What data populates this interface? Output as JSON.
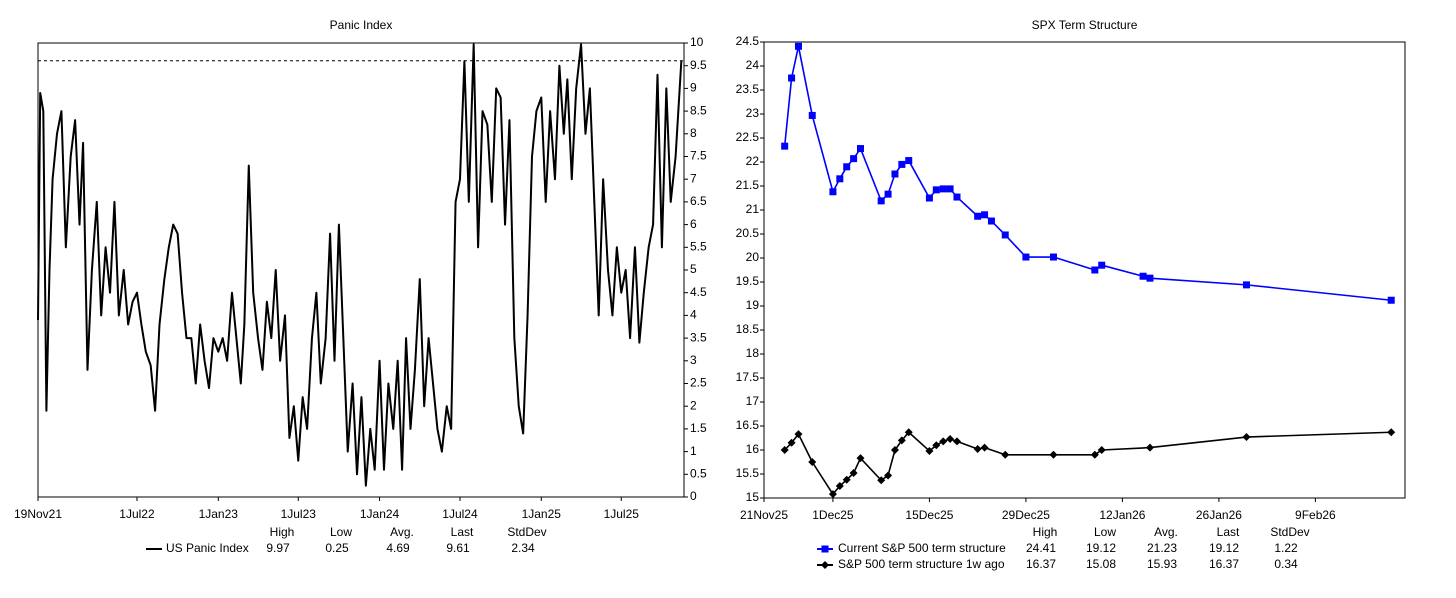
{
  "chart_data": [
    {
      "type": "line",
      "title": "Panic Index",
      "yaxis_side": "right",
      "last_line": true,
      "xlim": [
        "2021-11-19",
        "2025-11-20"
      ],
      "xticks": [
        {
          "value": "2021-11-19",
          "label": "19Nov21"
        },
        {
          "value": "2022-07-01",
          "label": "1Jul22"
        },
        {
          "value": "2023-01-01",
          "label": "1Jan23"
        },
        {
          "value": "2023-07-01",
          "label": "1Jul23"
        },
        {
          "value": "2024-01-01",
          "label": "1Jan24"
        },
        {
          "value": "2024-07-01",
          "label": "1Jul24"
        },
        {
          "value": "2025-01-01",
          "label": "1Jan25"
        },
        {
          "value": "2025-07-01",
          "label": "1Jul25"
        }
      ],
      "ylim": [
        0,
        10
      ],
      "yticks": [
        0,
        0.5,
        1,
        1.5,
        2,
        2.5,
        3,
        3.5,
        4,
        4.5,
        5,
        5.5,
        6,
        6.5,
        7,
        7.5,
        8,
        8.5,
        9,
        9.5,
        10
      ],
      "stats_columns": [
        "High",
        "Low",
        "Avg.",
        "Last",
        "StdDev"
      ],
      "series": [
        {
          "name": "US Panic Index",
          "color": "#000000",
          "marker": null,
          "stats": [
            9.97,
            0.25,
            4.69,
            9.61,
            2.34
          ],
          "x": [
            "2021-11-19",
            "2021-11-24",
            "2021-12-01",
            "2021-12-08",
            "2021-12-15",
            "2021-12-22",
            "2022-01-01",
            "2022-01-11",
            "2022-01-21",
            "2022-02-01",
            "2022-02-11",
            "2022-02-21",
            "2022-03-01",
            "2022-03-11",
            "2022-03-21",
            "2022-04-01",
            "2022-04-11",
            "2022-04-21",
            "2022-05-01",
            "2022-05-11",
            "2022-05-21",
            "2022-06-01",
            "2022-06-11",
            "2022-06-21",
            "2022-07-01",
            "2022-07-11",
            "2022-07-21",
            "2022-08-01",
            "2022-08-11",
            "2022-08-21",
            "2022-09-01",
            "2022-09-11",
            "2022-09-21",
            "2022-10-01",
            "2022-10-11",
            "2022-10-21",
            "2022-11-01",
            "2022-11-11",
            "2022-11-21",
            "2022-12-01",
            "2022-12-11",
            "2022-12-21",
            "2023-01-01",
            "2023-01-11",
            "2023-01-21",
            "2023-02-01",
            "2023-02-11",
            "2023-02-21",
            "2023-03-01",
            "2023-03-11",
            "2023-03-21",
            "2023-04-01",
            "2023-04-11",
            "2023-04-21",
            "2023-05-01",
            "2023-05-11",
            "2023-05-21",
            "2023-06-01",
            "2023-06-11",
            "2023-06-21",
            "2023-07-01",
            "2023-07-11",
            "2023-07-21",
            "2023-08-01",
            "2023-08-11",
            "2023-08-21",
            "2023-09-01",
            "2023-09-11",
            "2023-09-21",
            "2023-10-01",
            "2023-10-11",
            "2023-10-21",
            "2023-11-01",
            "2023-11-11",
            "2023-11-21",
            "2023-12-01",
            "2023-12-11",
            "2023-12-21",
            "2024-01-01",
            "2024-01-11",
            "2024-01-21",
            "2024-02-01",
            "2024-02-11",
            "2024-02-21",
            "2024-03-01",
            "2024-03-11",
            "2024-03-21",
            "2024-04-01",
            "2024-04-11",
            "2024-04-21",
            "2024-05-01",
            "2024-05-11",
            "2024-05-21",
            "2024-06-01",
            "2024-06-11",
            "2024-06-21",
            "2024-07-01",
            "2024-07-11",
            "2024-07-21",
            "2024-08-01",
            "2024-08-11",
            "2024-08-21",
            "2024-09-01",
            "2024-09-11",
            "2024-09-21",
            "2024-10-01",
            "2024-10-11",
            "2024-10-21",
            "2024-11-01",
            "2024-11-11",
            "2024-11-21",
            "2024-12-01",
            "2024-12-11",
            "2024-12-21",
            "2025-01-01",
            "2025-01-11",
            "2025-01-21",
            "2025-02-01",
            "2025-02-11",
            "2025-02-21",
            "2025-03-01",
            "2025-03-11",
            "2025-03-21",
            "2025-04-01",
            "2025-04-11",
            "2025-04-21",
            "2025-05-01",
            "2025-05-11",
            "2025-05-21",
            "2025-06-01",
            "2025-06-11",
            "2025-06-21",
            "2025-07-01",
            "2025-07-11",
            "2025-07-21",
            "2025-08-01",
            "2025-08-11",
            "2025-08-21",
            "2025-09-01",
            "2025-09-11",
            "2025-09-21",
            "2025-10-01",
            "2025-10-11",
            "2025-10-21",
            "2025-11-01",
            "2025-11-14"
          ],
          "values": [
            3.9,
            8.9,
            8.5,
            1.9,
            5.0,
            7.0,
            8.0,
            8.5,
            5.5,
            7.5,
            8.3,
            6.0,
            7.8,
            2.8,
            5.0,
            6.5,
            4.0,
            5.5,
            4.5,
            6.5,
            4.0,
            5.0,
            3.8,
            4.3,
            4.5,
            3.8,
            3.2,
            2.9,
            1.9,
            3.8,
            4.8,
            5.5,
            6.0,
            5.8,
            4.5,
            3.5,
            3.5,
            2.5,
            3.8,
            3.0,
            2.4,
            3.5,
            3.2,
            3.5,
            3.0,
            4.5,
            3.5,
            2.5,
            3.8,
            7.3,
            4.5,
            3.5,
            2.8,
            4.3,
            3.5,
            5.0,
            3.0,
            4.0,
            1.3,
            2.0,
            0.8,
            2.2,
            1.5,
            3.5,
            4.5,
            2.5,
            3.5,
            5.8,
            3.0,
            6.0,
            3.5,
            1.0,
            2.5,
            0.5,
            2.2,
            0.25,
            1.5,
            0.6,
            3.0,
            0.6,
            2.5,
            1.5,
            3.0,
            0.6,
            3.5,
            1.5,
            2.8,
            4.8,
            2.0,
            3.5,
            2.5,
            1.5,
            1.0,
            2.0,
            1.5,
            6.5,
            7.0,
            9.6,
            6.5,
            9.97,
            5.5,
            8.5,
            8.2,
            6.5,
            9.0,
            8.8,
            6.0,
            8.3,
            3.5,
            2.0,
            1.4,
            4.0,
            7.5,
            8.5,
            8.8,
            6.5,
            8.5,
            7.0,
            9.5,
            8.0,
            9.2,
            7.0,
            9.0,
            9.97,
            8.0,
            9.0,
            6.5,
            4.0,
            7.0,
            5.0,
            4.0,
            5.5,
            4.5,
            5.0,
            3.5,
            5.5,
            3.4,
            4.5,
            5.5,
            6.0,
            9.3,
            5.5,
            9.0,
            6.5,
            7.5,
            9.61
          ]
        }
      ]
    },
    {
      "type": "line",
      "title": "SPX Term Structure",
      "yaxis_side": "left",
      "last_line": false,
      "xlim": [
        "2025-11-21",
        "2026-02-22"
      ],
      "xticks": [
        {
          "value": "2025-11-21",
          "label": "21Nov25"
        },
        {
          "value": "2025-12-01",
          "label": "1Dec25"
        },
        {
          "value": "2025-12-15",
          "label": "15Dec25"
        },
        {
          "value": "2025-12-29",
          "label": "29Dec25"
        },
        {
          "value": "2026-01-12",
          "label": "12Jan26"
        },
        {
          "value": "2026-01-26",
          "label": "26Jan26"
        },
        {
          "value": "2026-02-09",
          "label": "9Feb26"
        }
      ],
      "ylim": [
        15,
        24.5
      ],
      "yticks": [
        15,
        15.5,
        16,
        16.5,
        17,
        17.5,
        18,
        18.5,
        19,
        19.5,
        20,
        20.5,
        21,
        21.5,
        22,
        22.5,
        23,
        23.5,
        24,
        24.5
      ],
      "stats_columns": [
        "High",
        "Low",
        "Avg.",
        "Last",
        "StdDev"
      ],
      "series": [
        {
          "name": "Current S&P 500 term structure",
          "color": "#0000ff",
          "marker": "square",
          "stats": [
            24.41,
            19.12,
            21.23,
            19.12,
            1.22
          ],
          "x": [
            "2025-11-24",
            "2025-11-25",
            "2025-11-26",
            "2025-11-28",
            "2025-12-01",
            "2025-12-02",
            "2025-12-03",
            "2025-12-04",
            "2025-12-05",
            "2025-12-08",
            "2025-12-09",
            "2025-12-10",
            "2025-12-11",
            "2025-12-12",
            "2025-12-15",
            "2025-12-16",
            "2025-12-17",
            "2025-12-18",
            "2025-12-19",
            "2025-12-22",
            "2025-12-23",
            "2025-12-24",
            "2025-12-26",
            "2025-12-29",
            "2026-01-02",
            "2026-01-08",
            "2026-01-09",
            "2026-01-15",
            "2026-01-16",
            "2026-01-30",
            "2026-02-20"
          ],
          "values": [
            22.33,
            23.75,
            24.41,
            22.97,
            21.38,
            21.65,
            21.9,
            22.07,
            22.28,
            21.19,
            21.33,
            21.75,
            21.95,
            22.03,
            21.25,
            21.42,
            21.44,
            21.44,
            21.27,
            20.87,
            20.9,
            20.77,
            20.48,
            20.02,
            20.02,
            19.75,
            19.85,
            19.62,
            19.58,
            19.44,
            19.12
          ]
        },
        {
          "name": "S&P 500 term structure 1w ago",
          "color": "#000000",
          "marker": "diamond",
          "stats": [
            16.37,
            15.08,
            15.93,
            16.37,
            0.34
          ],
          "x": [
            "2025-11-24",
            "2025-11-25",
            "2025-11-26",
            "2025-11-28",
            "2025-12-01",
            "2025-12-02",
            "2025-12-03",
            "2025-12-04",
            "2025-12-05",
            "2025-12-08",
            "2025-12-09",
            "2025-12-10",
            "2025-12-11",
            "2025-12-12",
            "2025-12-15",
            "2025-12-16",
            "2025-12-17",
            "2025-12-18",
            "2025-12-19",
            "2025-12-22",
            "2025-12-23",
            "2025-12-26",
            "2026-01-02",
            "2026-01-08",
            "2026-01-09",
            "2026-01-16",
            "2026-01-30",
            "2026-02-20"
          ],
          "values": [
            16.0,
            16.15,
            16.33,
            15.75,
            15.08,
            15.25,
            15.38,
            15.52,
            15.83,
            15.37,
            15.47,
            16.0,
            16.2,
            16.37,
            15.98,
            16.1,
            16.18,
            16.23,
            16.18,
            16.02,
            16.05,
            15.9,
            15.9,
            15.9,
            16.0,
            16.05,
            16.27,
            16.37
          ]
        }
      ]
    }
  ]
}
